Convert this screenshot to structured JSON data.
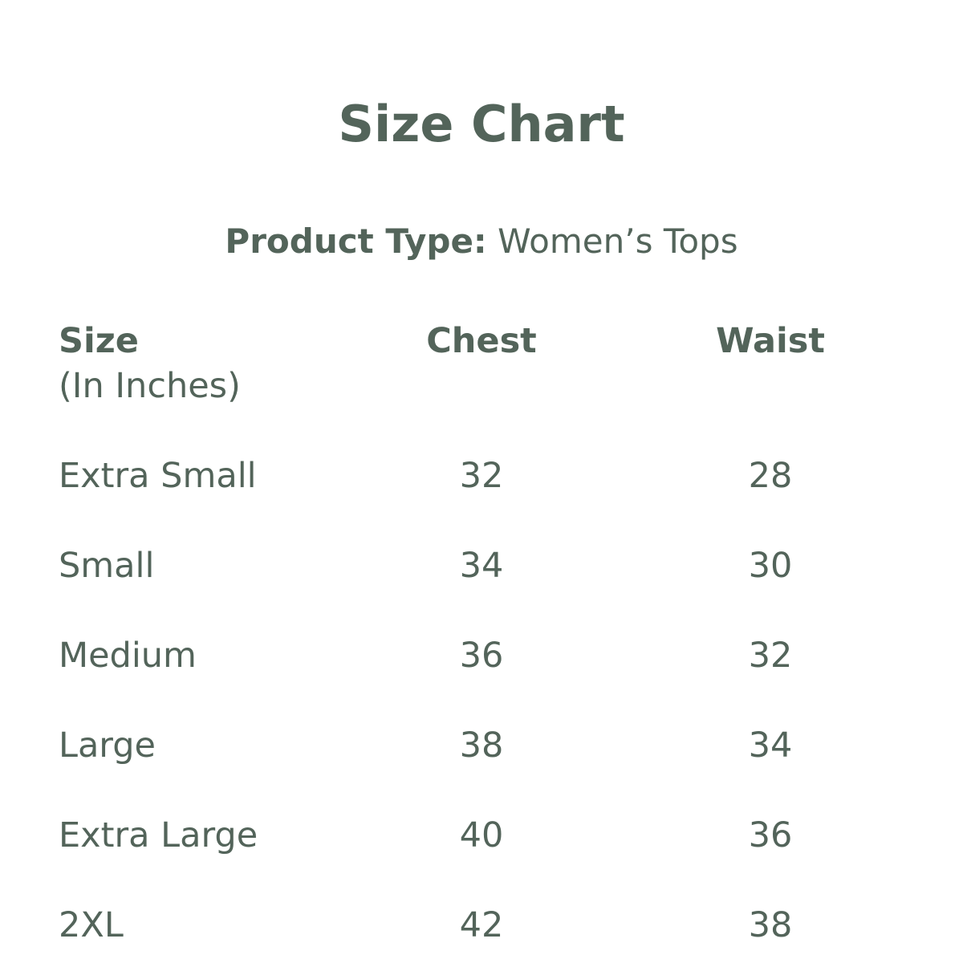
{
  "title": "Size Chart",
  "product_type": {
    "label": "Product Type:",
    "value": "Women’s Tops"
  },
  "table": {
    "headers": {
      "size": "Size",
      "size_unit": "(In Inches)",
      "chest": "Chest",
      "waist": "Waist"
    },
    "rows": [
      {
        "size": "Extra Small",
        "chest": "32",
        "waist": "28"
      },
      {
        "size": "Small",
        "chest": "34",
        "waist": "30"
      },
      {
        "size": "Medium",
        "chest": "36",
        "waist": "32"
      },
      {
        "size": "Large",
        "chest": "38",
        "waist": "34"
      },
      {
        "size": "Extra Large",
        "chest": "40",
        "waist": "36"
      },
      {
        "size": "2XL",
        "chest": "42",
        "waist": "38"
      }
    ]
  },
  "colors": {
    "text": "#53645a",
    "background": "#ffffff"
  }
}
